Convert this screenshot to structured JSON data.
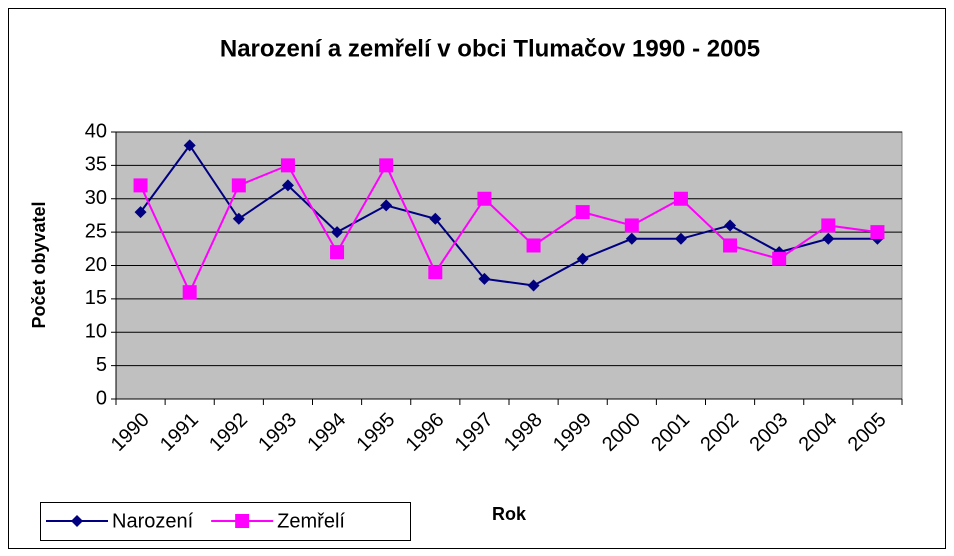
{
  "chart_data": {
    "type": "line",
    "title": "Narození a zemřelí v obci Tlumačov 1990 - 2005",
    "x_label": "Rok",
    "y_label": "Počet obyvatel",
    "categories": [
      "1990",
      "1991",
      "1992",
      "1993",
      "1994",
      "1995",
      "1996",
      "1997",
      "1998",
      "1999",
      "2000",
      "2001",
      "2002",
      "2003",
      "2004",
      "2005"
    ],
    "series": [
      {
        "name": "Narození",
        "color": "#000080",
        "marker": "diamond",
        "values": [
          28,
          38,
          27,
          32,
          25,
          29,
          27,
          18,
          17,
          21,
          24,
          24,
          26,
          22,
          24,
          24
        ]
      },
      {
        "name": "Zemřelí",
        "color": "#ff00ff",
        "marker": "square",
        "values": [
          32,
          16,
          32,
          35,
          22,
          35,
          19,
          30,
          23,
          28,
          26,
          30,
          23,
          21,
          26,
          25
        ]
      }
    ],
    "ylim": [
      0,
      40
    ],
    "yticks": [
      0,
      5,
      10,
      15,
      20,
      25,
      30,
      35,
      40
    ],
    "grid": true,
    "legend": "bottom-left"
  }
}
